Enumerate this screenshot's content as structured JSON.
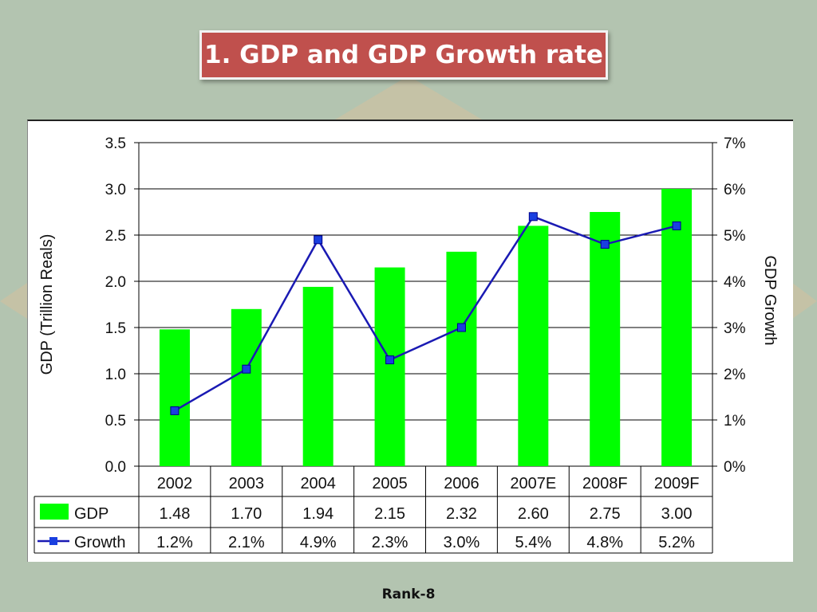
{
  "slide": {
    "title": "1. GDP and GDP Growth rate",
    "footer": "Rank-8"
  },
  "colors": {
    "background": "#b3c4b0",
    "title_bg": "#c0504d",
    "bar": "#00ff00",
    "line": "#1a1ab3",
    "marker": "#1a3fe0"
  },
  "chart_data": {
    "type": "bar",
    "categories": [
      "2002",
      "2003",
      "2004",
      "2005",
      "2006",
      "2007E",
      "2008F",
      "2009F"
    ],
    "series": [
      {
        "name": "GDP",
        "type": "bar",
        "axis": "left",
        "values": [
          1.48,
          1.7,
          1.94,
          2.15,
          2.32,
          2.6,
          2.75,
          3.0
        ],
        "labels": [
          "1.48",
          "1.70",
          "1.94",
          "2.15",
          "2.32",
          "2.60",
          "2.75",
          "3.00"
        ]
      },
      {
        "name": "Growth",
        "type": "line",
        "axis": "right",
        "values": [
          1.2,
          2.1,
          4.9,
          2.3,
          3.0,
          5.4,
          4.8,
          5.2
        ],
        "labels": [
          "1.2%",
          "2.1%",
          "4.9%",
          "2.3%",
          "3.0%",
          "5.4%",
          "4.8%",
          "5.2%"
        ]
      }
    ],
    "ylabel": "GDP (Trillion Reals)",
    "y2label": "GDP Growth",
    "ylim": [
      0,
      3.5
    ],
    "y2lim": [
      0,
      7
    ],
    "yticks": [
      "0.0",
      "0.5",
      "1.0",
      "1.5",
      "2.0",
      "2.5",
      "3.0",
      "3.5"
    ],
    "y2ticks": [
      "0%",
      "1%",
      "2%",
      "3%",
      "4%",
      "5%",
      "6%",
      "7%"
    ],
    "grid": true,
    "data_table": true
  }
}
